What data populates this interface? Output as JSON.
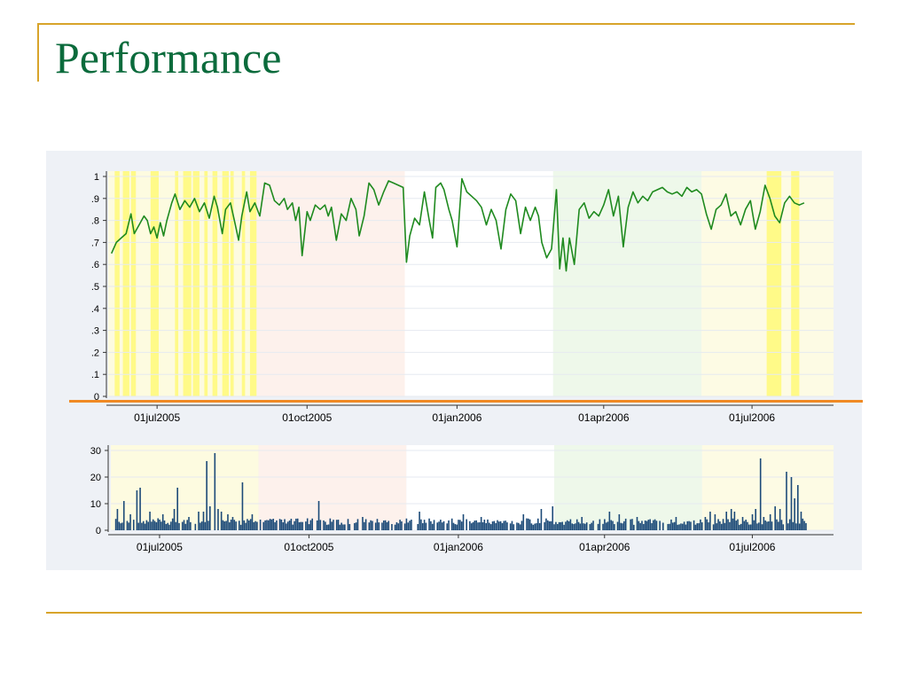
{
  "slide": {
    "title": "Performance",
    "colors": {
      "title": "#0b6b3c",
      "rule": "#d8a42a",
      "accent_line": "#f08a24",
      "panel_bg": "#eef1f6"
    }
  },
  "chart_data": [
    {
      "type": "line",
      "xaxis": "date",
      "xlim": [
        "2005-06-01",
        "2006-08-20"
      ],
      "ylim": [
        0,
        1
      ],
      "yticks": [
        "0",
        ".1",
        ".2",
        ".3",
        ".4",
        ".5",
        ".6",
        ".7",
        ".8",
        ".9",
        "1"
      ],
      "xticks": [
        {
          "date": "2005-07-01",
          "label": "01jul2005"
        },
        {
          "date": "2005-10-01",
          "label": "01oct2005"
        },
        {
          "date": "2006-01-01",
          "label": "01jan2006"
        },
        {
          "date": "2006-04-01",
          "label": "01apr2006"
        },
        {
          "date": "2006-07-01",
          "label": "01jul2006"
        }
      ],
      "grid": true,
      "line_color": "#1f8a1f",
      "background_periods": [
        {
          "start": "2005-06-01",
          "end": "2005-08-31",
          "color": "#fdfbe0"
        },
        {
          "start": "2005-08-31",
          "end": "2005-11-30",
          "color": "#fdf1ec"
        },
        {
          "start": "2005-11-30",
          "end": "2006-03-01",
          "color": "#ffffff"
        },
        {
          "start": "2006-03-01",
          "end": "2006-05-31",
          "color": "#eef8ea"
        },
        {
          "start": "2006-05-31",
          "end": "2006-08-20",
          "color": "#fdfbe4"
        }
      ],
      "highlight_color": "#fffa88",
      "highlights": [
        [
          "2005-06-05",
          "2005-06-08"
        ],
        [
          "2005-06-10",
          "2005-06-14"
        ],
        [
          "2005-06-15",
          "2005-06-18"
        ],
        [
          "2005-06-27",
          "2005-07-02"
        ],
        [
          "2005-07-12",
          "2005-07-14"
        ],
        [
          "2005-07-17",
          "2005-07-22"
        ],
        [
          "2005-07-23",
          "2005-07-27"
        ],
        [
          "2005-07-30",
          "2005-08-01"
        ],
        [
          "2005-08-04",
          "2005-08-07"
        ],
        [
          "2005-08-10",
          "2005-08-14"
        ],
        [
          "2005-08-15",
          "2005-08-17"
        ],
        [
          "2005-08-22",
          "2005-08-24"
        ],
        [
          "2005-08-27",
          "2005-08-31"
        ],
        [
          "2006-07-10",
          "2006-07-19"
        ],
        [
          "2006-07-25",
          "2006-07-30"
        ]
      ],
      "series": [
        {
          "values": [
            [
              "2005-06-03",
              0.65
            ],
            [
              "2005-06-06",
              0.7
            ],
            [
              "2005-06-09",
              0.72
            ],
            [
              "2005-06-12",
              0.74
            ],
            [
              "2005-06-15",
              0.83
            ],
            [
              "2005-06-17",
              0.74
            ],
            [
              "2005-06-20",
              0.78
            ],
            [
              "2005-06-23",
              0.82
            ],
            [
              "2005-06-25",
              0.8
            ],
            [
              "2005-06-27",
              0.74
            ],
            [
              "2005-06-29",
              0.77
            ],
            [
              "2005-07-01",
              0.72
            ],
            [
              "2005-07-03",
              0.79
            ],
            [
              "2005-07-05",
              0.73
            ],
            [
              "2005-07-07",
              0.8
            ],
            [
              "2005-07-10",
              0.88
            ],
            [
              "2005-07-12",
              0.92
            ],
            [
              "2005-07-15",
              0.85
            ],
            [
              "2005-07-18",
              0.89
            ],
            [
              "2005-07-21",
              0.86
            ],
            [
              "2005-07-24",
              0.9
            ],
            [
              "2005-07-27",
              0.84
            ],
            [
              "2005-07-30",
              0.88
            ],
            [
              "2005-08-02",
              0.81
            ],
            [
              "2005-08-05",
              0.91
            ],
            [
              "2005-08-07",
              0.86
            ],
            [
              "2005-08-10",
              0.74
            ],
            [
              "2005-08-12",
              0.85
            ],
            [
              "2005-08-15",
              0.88
            ],
            [
              "2005-08-18",
              0.78
            ],
            [
              "2005-08-20",
              0.71
            ],
            [
              "2005-08-22",
              0.82
            ],
            [
              "2005-08-25",
              0.93
            ],
            [
              "2005-08-27",
              0.84
            ],
            [
              "2005-08-30",
              0.88
            ],
            [
              "2005-09-02",
              0.82
            ],
            [
              "2005-09-05",
              0.97
            ],
            [
              "2005-09-08",
              0.96
            ],
            [
              "2005-09-11",
              0.89
            ],
            [
              "2005-09-14",
              0.87
            ],
            [
              "2005-09-17",
              0.9
            ],
            [
              "2005-09-19",
              0.85
            ],
            [
              "2005-09-22",
              0.88
            ],
            [
              "2005-09-24",
              0.8
            ],
            [
              "2005-09-26",
              0.86
            ],
            [
              "2005-09-28",
              0.64
            ],
            [
              "2005-10-01",
              0.84
            ],
            [
              "2005-10-03",
              0.8
            ],
            [
              "2005-10-06",
              0.87
            ],
            [
              "2005-10-09",
              0.85
            ],
            [
              "2005-10-12",
              0.87
            ],
            [
              "2005-10-14",
              0.82
            ],
            [
              "2005-10-16",
              0.86
            ],
            [
              "2005-10-19",
              0.71
            ],
            [
              "2005-10-22",
              0.83
            ],
            [
              "2005-10-25",
              0.8
            ],
            [
              "2005-10-28",
              0.9
            ],
            [
              "2005-10-31",
              0.85
            ],
            [
              "2005-11-02",
              0.73
            ],
            [
              "2005-11-05",
              0.82
            ],
            [
              "2005-11-08",
              0.97
            ],
            [
              "2005-11-11",
              0.94
            ],
            [
              "2005-11-14",
              0.87
            ],
            [
              "2005-11-17",
              0.93
            ],
            [
              "2005-11-20",
              0.98
            ],
            [
              "2005-11-23",
              0.97
            ],
            [
              "2005-11-26",
              0.96
            ],
            [
              "2005-11-29",
              0.95
            ],
            [
              "2005-12-01",
              0.61
            ],
            [
              "2005-12-03",
              0.73
            ],
            [
              "2005-12-06",
              0.81
            ],
            [
              "2005-12-09",
              0.78
            ],
            [
              "2005-12-12",
              0.93
            ],
            [
              "2005-12-15",
              0.8
            ],
            [
              "2005-12-17",
              0.72
            ],
            [
              "2005-12-19",
              0.95
            ],
            [
              "2005-12-22",
              0.97
            ],
            [
              "2005-12-24",
              0.94
            ],
            [
              "2005-12-27",
              0.85
            ],
            [
              "2005-12-29",
              0.8
            ],
            [
              "2006-01-01",
              0.68
            ],
            [
              "2006-01-04",
              0.99
            ],
            [
              "2006-01-07",
              0.93
            ],
            [
              "2006-01-10",
              0.91
            ],
            [
              "2006-01-13",
              0.89
            ],
            [
              "2006-01-16",
              0.86
            ],
            [
              "2006-01-19",
              0.78
            ],
            [
              "2006-01-22",
              0.85
            ],
            [
              "2006-01-25",
              0.8
            ],
            [
              "2006-01-28",
              0.67
            ],
            [
              "2006-01-31",
              0.85
            ],
            [
              "2006-02-03",
              0.92
            ],
            [
              "2006-02-06",
              0.89
            ],
            [
              "2006-02-09",
              0.74
            ],
            [
              "2006-02-12",
              0.86
            ],
            [
              "2006-02-15",
              0.8
            ],
            [
              "2006-02-18",
              0.86
            ],
            [
              "2006-02-20",
              0.82
            ],
            [
              "2006-02-22",
              0.7
            ],
            [
              "2006-02-25",
              0.63
            ],
            [
              "2006-02-28",
              0.67
            ],
            [
              "2006-03-03",
              0.94
            ],
            [
              "2006-03-05",
              0.58
            ],
            [
              "2006-03-07",
              0.72
            ],
            [
              "2006-03-09",
              0.57
            ],
            [
              "2006-03-11",
              0.72
            ],
            [
              "2006-03-14",
              0.6
            ],
            [
              "2006-03-17",
              0.85
            ],
            [
              "2006-03-20",
              0.88
            ],
            [
              "2006-03-23",
              0.81
            ],
            [
              "2006-03-26",
              0.84
            ],
            [
              "2006-03-29",
              0.82
            ],
            [
              "2006-04-01",
              0.87
            ],
            [
              "2006-04-04",
              0.94
            ],
            [
              "2006-04-07",
              0.82
            ],
            [
              "2006-04-10",
              0.91
            ],
            [
              "2006-04-13",
              0.68
            ],
            [
              "2006-04-16",
              0.86
            ],
            [
              "2006-04-19",
              0.93
            ],
            [
              "2006-04-22",
              0.88
            ],
            [
              "2006-04-25",
              0.91
            ],
            [
              "2006-04-28",
              0.89
            ],
            [
              "2006-05-01",
              0.93
            ],
            [
              "2006-05-04",
              0.94
            ],
            [
              "2006-05-07",
              0.95
            ],
            [
              "2006-05-10",
              0.93
            ],
            [
              "2006-05-13",
              0.92
            ],
            [
              "2006-05-16",
              0.93
            ],
            [
              "2006-05-19",
              0.91
            ],
            [
              "2006-05-22",
              0.95
            ],
            [
              "2006-05-25",
              0.93
            ],
            [
              "2006-05-28",
              0.94
            ],
            [
              "2006-05-31",
              0.92
            ],
            [
              "2006-06-03",
              0.83
            ],
            [
              "2006-06-06",
              0.76
            ],
            [
              "2006-06-09",
              0.85
            ],
            [
              "2006-06-12",
              0.87
            ],
            [
              "2006-06-15",
              0.92
            ],
            [
              "2006-06-18",
              0.82
            ],
            [
              "2006-06-21",
              0.84
            ],
            [
              "2006-06-24",
              0.78
            ],
            [
              "2006-06-27",
              0.85
            ],
            [
              "2006-06-30",
              0.89
            ],
            [
              "2006-07-03",
              0.76
            ],
            [
              "2006-07-06",
              0.84
            ],
            [
              "2006-07-09",
              0.96
            ],
            [
              "2006-07-12",
              0.9
            ],
            [
              "2006-07-15",
              0.82
            ],
            [
              "2006-07-18",
              0.79
            ],
            [
              "2006-07-21",
              0.88
            ],
            [
              "2006-07-24",
              0.91
            ],
            [
              "2006-07-27",
              0.88
            ],
            [
              "2006-07-30",
              0.87
            ],
            [
              "2006-08-02",
              0.88
            ]
          ]
        }
      ]
    },
    {
      "type": "bar",
      "xaxis": "date",
      "xlim": [
        "2005-06-01",
        "2006-08-20"
      ],
      "ylim": [
        0,
        30
      ],
      "yticks": [
        "0",
        "10",
        "20",
        "30"
      ],
      "xticks": [
        {
          "date": "2005-07-01",
          "label": "01jul2005"
        },
        {
          "date": "2005-10-01",
          "label": "01oct2005"
        },
        {
          "date": "2006-01-01",
          "label": "01jan2006"
        },
        {
          "date": "2006-04-01",
          "label": "01apr2006"
        },
        {
          "date": "2006-07-01",
          "label": "01jul2006"
        }
      ],
      "grid": true,
      "bar_color": "#1c4a78",
      "baseline": 3,
      "spikes": [
        [
          "2005-06-05",
          8
        ],
        [
          "2005-06-09",
          11
        ],
        [
          "2005-06-13",
          6
        ],
        [
          "2005-06-17",
          15
        ],
        [
          "2005-06-19",
          16
        ],
        [
          "2005-06-25",
          7
        ],
        [
          "2005-07-03",
          6
        ],
        [
          "2005-07-10",
          8
        ],
        [
          "2005-07-12",
          16
        ],
        [
          "2005-07-19",
          5
        ],
        [
          "2005-07-25",
          7
        ],
        [
          "2005-07-28",
          7
        ],
        [
          "2005-07-30",
          26
        ],
        [
          "2005-08-01",
          9
        ],
        [
          "2005-08-04",
          29
        ],
        [
          "2005-08-06",
          8
        ],
        [
          "2005-08-08",
          7
        ],
        [
          "2005-08-12",
          6
        ],
        [
          "2005-08-15",
          5
        ],
        [
          "2005-08-21",
          18
        ],
        [
          "2005-08-27",
          6
        ],
        [
          "2005-09-01",
          4
        ],
        [
          "2005-10-07",
          11
        ],
        [
          "2005-11-03",
          5
        ],
        [
          "2005-12-08",
          7
        ],
        [
          "2006-01-04",
          6
        ],
        [
          "2006-01-15",
          5
        ],
        [
          "2006-02-10",
          6
        ],
        [
          "2006-02-21",
          8
        ],
        [
          "2006-02-28",
          9
        ],
        [
          "2006-03-18",
          5
        ],
        [
          "2006-04-04",
          7
        ],
        [
          "2006-04-10",
          6
        ],
        [
          "2006-04-21",
          5
        ],
        [
          "2006-05-15",
          5
        ],
        [
          "2006-06-02",
          5
        ],
        [
          "2006-06-05",
          7
        ],
        [
          "2006-06-08",
          6
        ],
        [
          "2006-06-15",
          7
        ],
        [
          "2006-06-18",
          8
        ],
        [
          "2006-06-20",
          7
        ],
        [
          "2006-06-25",
          5
        ],
        [
          "2006-07-01",
          6
        ],
        [
          "2006-07-03",
          8
        ],
        [
          "2006-07-06",
          27
        ],
        [
          "2006-07-08",
          5
        ],
        [
          "2006-07-12",
          6
        ],
        [
          "2006-07-15",
          9
        ],
        [
          "2006-07-18",
          8
        ],
        [
          "2006-07-22",
          22
        ],
        [
          "2006-07-25",
          20
        ],
        [
          "2006-07-27",
          12
        ],
        [
          "2006-07-29",
          17
        ],
        [
          "2006-07-31",
          7
        ]
      ]
    }
  ]
}
